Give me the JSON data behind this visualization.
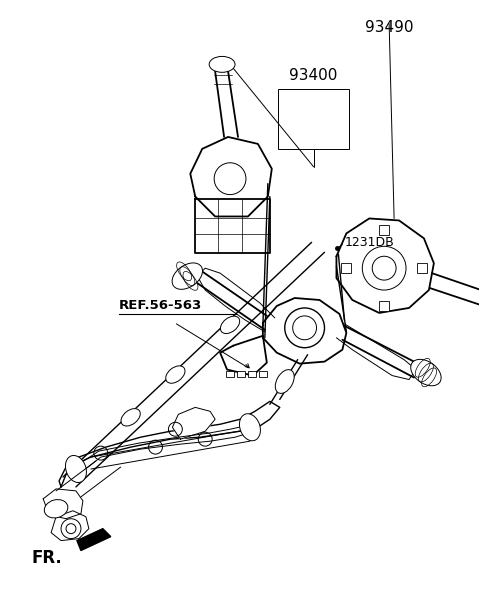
{
  "background_color": "#ffffff",
  "line_color": "#000000",
  "label_93400": "93400",
  "label_93490": "93490",
  "label_1231DB": "1231DB",
  "label_ref": "REF.56-563",
  "label_fr": "FR.",
  "lw_main": 1.3,
  "lw_thin": 0.7,
  "lw_med": 1.0
}
